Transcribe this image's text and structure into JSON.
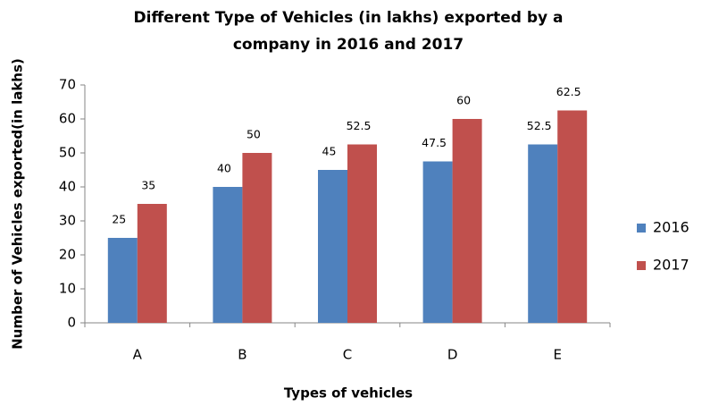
{
  "chart_data": {
    "type": "bar",
    "title": [
      "Different Type of Vehicles (in lakhs) exported by a",
      "company in 2016 and 2017"
    ],
    "x_label": "Types of vehicles",
    "y_label": "Number of Vehicles exported(in lakhs)",
    "categories": [
      "A",
      "B",
      "C",
      "D",
      "E"
    ],
    "series": [
      {
        "name": "2016",
        "color": "#4f81bd",
        "values": [
          25,
          40,
          45,
          47.5,
          52.5
        ]
      },
      {
        "name": "2017",
        "color": "#c0504d",
        "values": [
          35,
          50,
          52.5,
          60,
          62.5
        ]
      }
    ],
    "ylim": [
      0,
      70
    ],
    "yticks": [
      0,
      10,
      20,
      30,
      40,
      50,
      60,
      70
    ],
    "grid": false,
    "legend": "right"
  }
}
